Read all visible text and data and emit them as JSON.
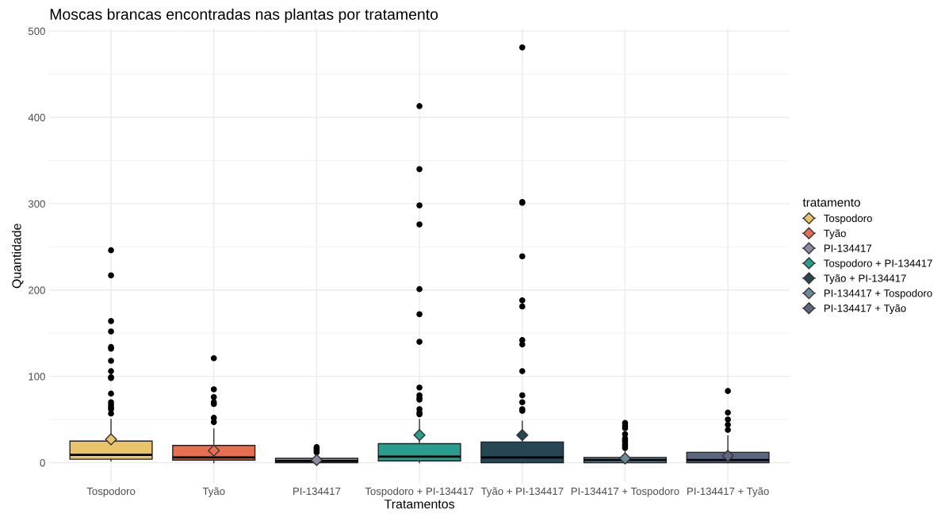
{
  "chart_data": {
    "type": "box",
    "title": "Moscas brancas encontradas nas plantas por tratamento",
    "xlabel": "Tratamentos",
    "ylabel": "Quantidade",
    "legend_title": "tratamento",
    "categories": [
      "Tospodoro",
      "Tyão",
      "PI-134417",
      "Tospodoro + PI-134417",
      "Tyão + PI-134417",
      "PI-134417 + Tospodoro",
      "PI-134417 + Tyão"
    ],
    "series": [
      {
        "name": "Tospodoro",
        "color": "#e9c46a",
        "boxes": [
          {
            "low": 2,
            "q1": 4,
            "median": 9,
            "q3": 25,
            "high": 50,
            "mean": 27,
            "outliers": [
              246,
              217,
              164,
              152,
              134,
              132,
              118,
              106,
              99,
              98,
              80,
              70,
              67,
              64,
              62,
              57
            ]
          },
          null,
          null,
          null,
          null,
          null,
          null
        ]
      },
      {
        "name": "Tyão",
        "color": "#e76f51",
        "boxes": [
          null,
          {
            "low": 0,
            "q1": 3,
            "median": 6,
            "q3": 20,
            "high": 39,
            "mean": 14,
            "outliers": [
              121,
              85,
              76,
              70,
              68,
              52,
              47
            ]
          },
          null,
          null,
          null,
          null,
          null
        ]
      },
      {
        "name": "PI-134417",
        "color": "#8a89a6",
        "boxes": [
          null,
          null,
          {
            "low": 0,
            "q1": 0,
            "median": 2,
            "q3": 5,
            "high": 10,
            "mean": 3,
            "outliers": [
              18,
              16,
              14,
              12
            ]
          },
          null,
          null,
          null,
          null
        ]
      },
      {
        "name": "Tospodoro + PI-134417",
        "color": "#2a9d8f",
        "boxes": [
          null,
          null,
          null,
          {
            "low": 0,
            "q1": 2,
            "median": 7,
            "q3": 22,
            "high": 50,
            "mean": 32,
            "outliers": [
              413,
              340,
              298,
              276,
              201,
              172,
              140,
              87,
              78,
              75,
              73,
              62,
              58,
              56
            ]
          },
          null,
          null,
          null
        ]
      },
      {
        "name": "Tyão + PI-134417",
        "color": "#264653",
        "boxes": [
          null,
          null,
          null,
          null,
          {
            "low": 0,
            "q1": 0,
            "median": 6,
            "q3": 24,
            "high": 48,
            "mean": 32,
            "outliers": [
              481,
              302,
              301,
              239,
              188,
              181,
              142,
              137,
              106,
              78,
              70,
              62,
              60
            ]
          },
          null,
          null
        ]
      },
      {
        "name": "PI-134417 + Tospodoro",
        "color": "#6b8a9e",
        "boxes": [
          null,
          null,
          null,
          null,
          null,
          {
            "low": 0,
            "q1": 0,
            "median": 3,
            "q3": 6,
            "high": 13,
            "mean": 5,
            "outliers": [
              46,
              43,
              40,
              33,
              28,
              26,
              24,
              21,
              19,
              17
            ]
          },
          null
        ]
      },
      {
        "name": "PI-134417 + Tyão",
        "color": "#5a6780",
        "boxes": [
          null,
          null,
          null,
          null,
          null,
          null,
          {
            "low": 0,
            "q1": 0,
            "median": 3,
            "q3": 12,
            "high": 31,
            "mean": 8,
            "outliers": [
              83,
              58,
              50,
              44,
              38
            ]
          }
        ]
      }
    ],
    "ylim": [
      -24,
      503
    ],
    "yticks": [
      0,
      100,
      200,
      300,
      400,
      500
    ],
    "grid": true,
    "legend": "right"
  }
}
